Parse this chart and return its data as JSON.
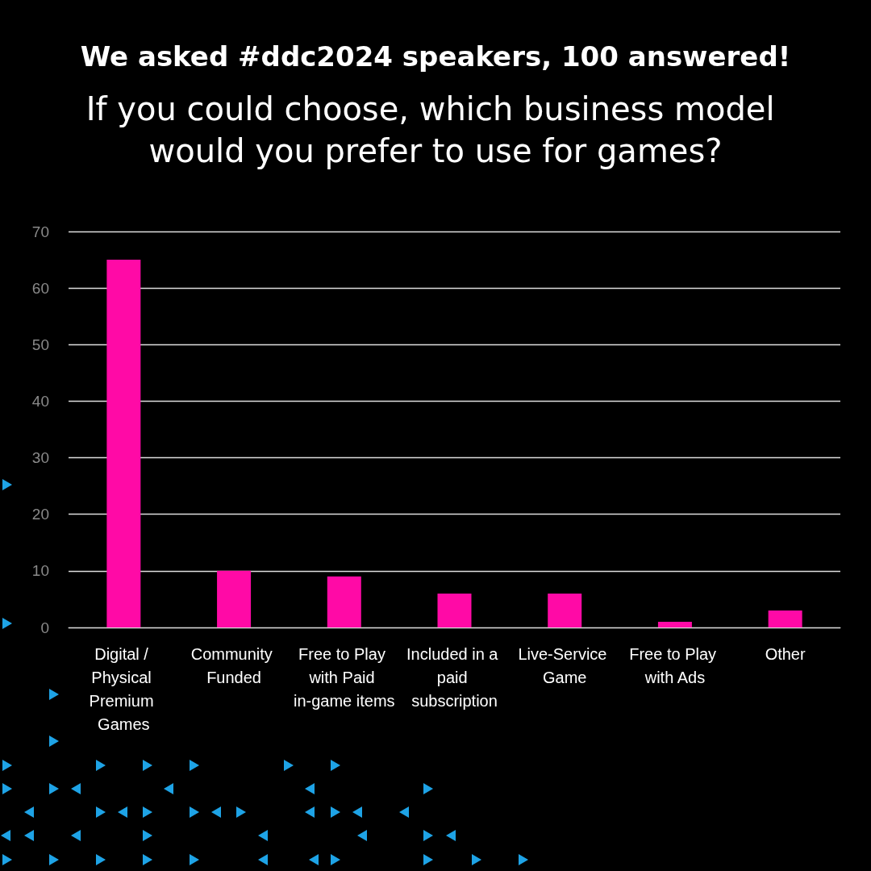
{
  "chart_data": {
    "type": "bar",
    "title": "We asked #ddc2024 speakers, 100 answered!",
    "subtitle": "If you could choose, which business model would you prefer to use for games?",
    "categories": [
      "Digital / Physical Premium Games",
      "Community Funded",
      "Free to Play with Paid in-game items",
      "Included in a paid subscription",
      "Live-Service Game",
      "Free to Play with Ads",
      "Other"
    ],
    "values": [
      65,
      10,
      9,
      6,
      6,
      1,
      3
    ],
    "color": "#ff0aa6",
    "ylim": [
      0,
      70
    ],
    "yticks": [
      0,
      10,
      20,
      30,
      40,
      50,
      60,
      70
    ],
    "grid": "y"
  }
}
